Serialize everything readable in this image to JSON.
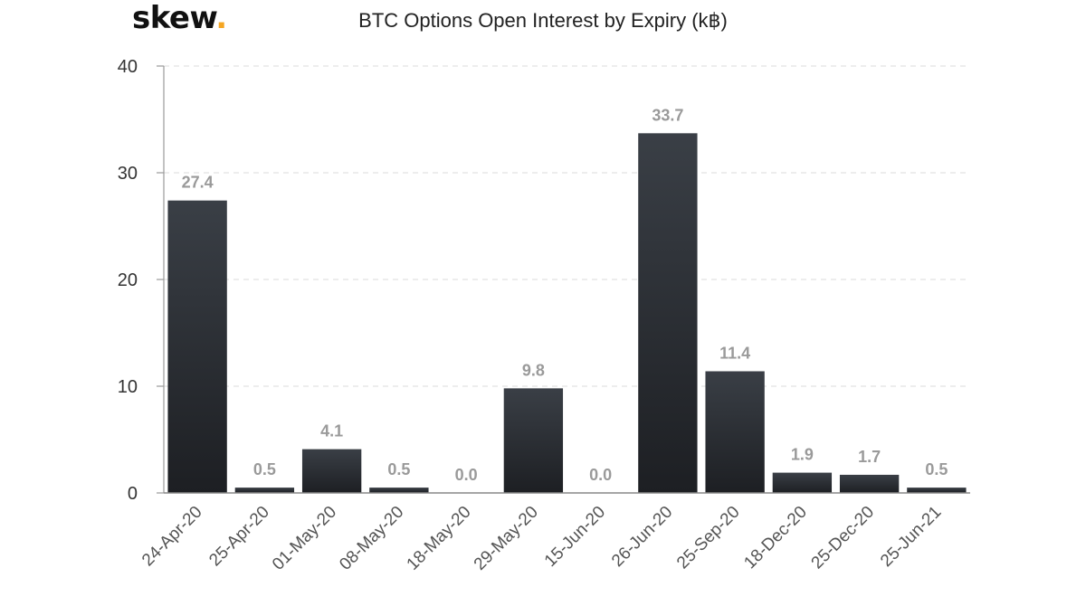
{
  "brand": {
    "name": "skew",
    "dot": "."
  },
  "chart_data": {
    "type": "bar",
    "title": "BTC Options Open Interest by Expiry (k฿)",
    "categories": [
      "24-Apr-20",
      "25-Apr-20",
      "01-May-20",
      "08-May-20",
      "18-May-20",
      "29-May-20",
      "15-Jun-20",
      "26-Jun-20",
      "25-Sep-20",
      "18-Dec-20",
      "25-Dec-20",
      "25-Jun-21"
    ],
    "values": [
      27.4,
      0.5,
      4.1,
      0.5,
      0.0,
      9.8,
      0.0,
      33.7,
      11.4,
      1.9,
      1.7,
      0.5
    ],
    "value_labels": [
      "27.4",
      "0.5",
      "4.1",
      "0.5",
      "0.0",
      "9.8",
      "0.0",
      "33.7",
      "11.4",
      "1.9",
      "1.7",
      "0.5"
    ],
    "ylim": [
      0,
      40
    ],
    "yticks": [
      0,
      10,
      20,
      30,
      40
    ],
    "xlabel": "",
    "ylabel": "",
    "grid": "horizontal-dashed",
    "legend": "none",
    "bar_color_top": "#3a3f46",
    "bar_color_bottom": "#1d1f23"
  }
}
